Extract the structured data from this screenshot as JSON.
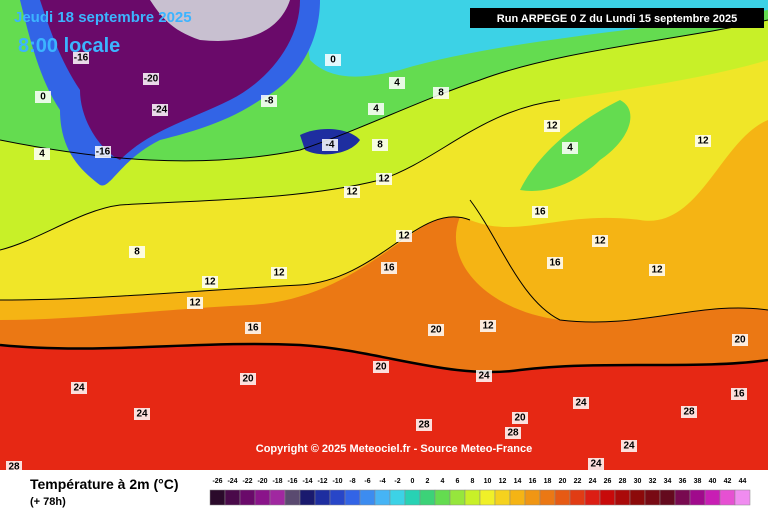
{
  "header": {
    "date": "Jeudi 18 septembre 2025",
    "time": "8:00 locale",
    "run": "Run ARPEGE 0 Z du Lundi 15 septembre 2025"
  },
  "footer": {
    "title": "Température à 2m (°C)",
    "subtitle": "(+ 78h)",
    "copyright": "Copyright © 2025 Meteociel.fr - Source Meteo-France"
  },
  "legend": {
    "values": [
      -26,
      -24,
      -22,
      -20,
      -18,
      -16,
      -14,
      -12,
      -10,
      -8,
      -6,
      -4,
      -2,
      0,
      2,
      4,
      6,
      8,
      10,
      12,
      14,
      16,
      18,
      20,
      22,
      24,
      26,
      28,
      30,
      32,
      34,
      36,
      38,
      40,
      42,
      44
    ],
    "colors": [
      "#2b0a2b",
      "#4a0a4a",
      "#6a0a6a",
      "#8a148a",
      "#a028a0",
      "#5a4a70",
      "#1a1a6e",
      "#1e2ea0",
      "#2846c8",
      "#3264e6",
      "#3c8cf0",
      "#46b4f5",
      "#3cd2e6",
      "#28d2b4",
      "#3cd278",
      "#64dc50",
      "#96e63c",
      "#c8f028",
      "#f0f028",
      "#f5d21e",
      "#f5b414",
      "#f09614",
      "#eb7814",
      "#e65a14",
      "#e13c14",
      "#dc1e14",
      "#c80a0a",
      "#aa0a0a",
      "#8c0a0a",
      "#780a14",
      "#640a1e",
      "#780a50",
      "#a00a8c",
      "#c81eb4",
      "#e650d2",
      "#f08cf0"
    ]
  },
  "map": {
    "labels": [
      "24",
      "24",
      "28",
      "20",
      "16",
      "12",
      "12",
      "12",
      "8",
      "12",
      "12",
      "8",
      "4",
      "4",
      "8",
      "0",
      "-16",
      "-20",
      "-24",
      "-16",
      "4",
      "0",
      "16",
      "12",
      "16",
      "12",
      "16",
      "12",
      "12",
      "4",
      "12",
      "20",
      "20",
      "24",
      "24",
      "20",
      "28",
      "24",
      "28",
      "20",
      "24",
      "28",
      "16",
      "12",
      "-8",
      "-4"
    ]
  }
}
